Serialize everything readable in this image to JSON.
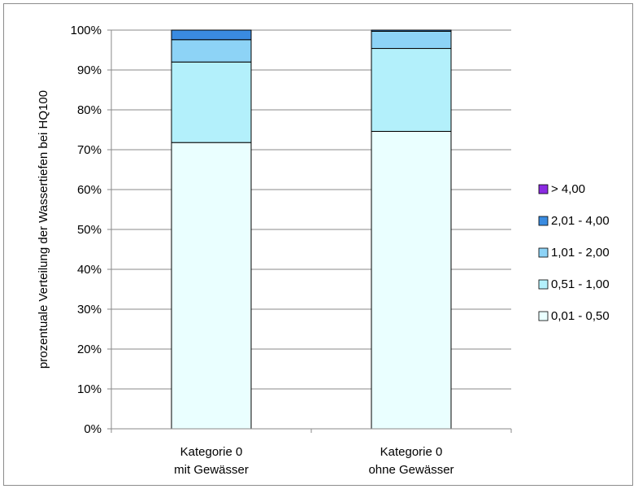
{
  "chart_data": {
    "type": "stacked-bar-100",
    "title": "",
    "ylabel": "prozentuale Verteilung der Wassertiefen bei HQ100",
    "xlabel": "",
    "ylim": [
      0,
      100
    ],
    "y_tick_step": 10,
    "y_tick_labels": [
      "0%",
      "10%",
      "20%",
      "30%",
      "40%",
      "50%",
      "60%",
      "70%",
      "80%",
      "90%",
      "100%"
    ],
    "grid": true,
    "legend_position": "right",
    "categories": [
      [
        "Kategorie 0",
        "mit Gewässer"
      ],
      [
        "Kategorie 0",
        "ohne Gewässer"
      ]
    ],
    "series": [
      {
        "name": "0,01 - 0,50",
        "color": "#eaffff",
        "values": [
          71.8,
          74.6
        ]
      },
      {
        "name": "0,51 - 1,00",
        "color": "#b3f0fb",
        "values": [
          20.2,
          20.8
        ]
      },
      {
        "name": "1,01 - 2,00",
        "color": "#8dd3f6",
        "values": [
          5.6,
          4.3
        ]
      },
      {
        "name": "2,01 - 4,00",
        "color": "#3a8be0",
        "values": [
          2.4,
          0.3
        ]
      },
      {
        "name": "> 4,00",
        "color": "#8b2be2",
        "values": [
          0.0,
          0.0
        ]
      }
    ],
    "legend_order": [
      "> 4,00",
      "2,01 - 4,00",
      "1,01 - 2,00",
      "0,51 - 1,00",
      "0,01 - 0,50"
    ]
  }
}
